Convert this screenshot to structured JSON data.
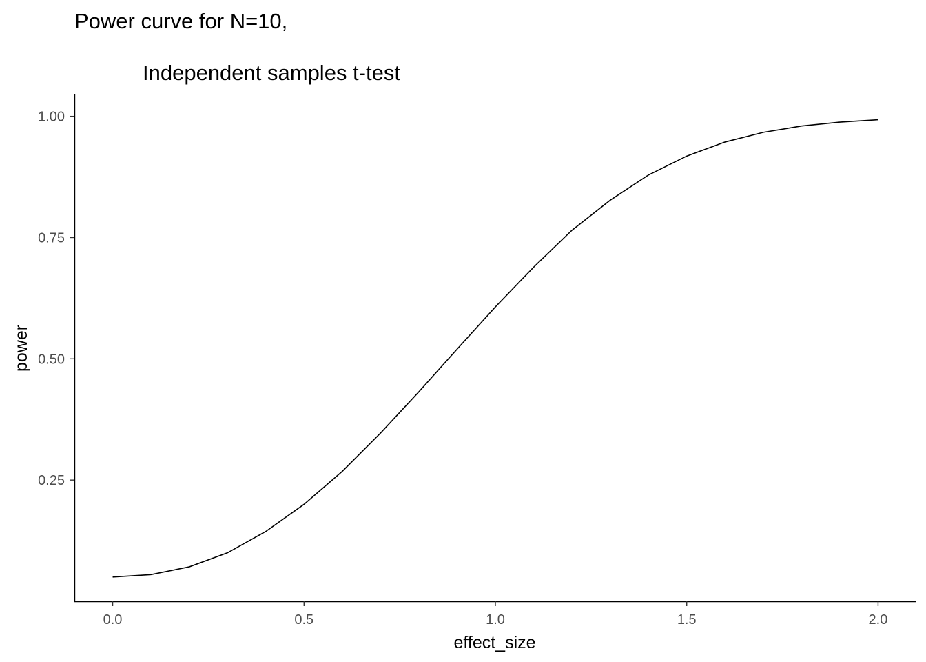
{
  "chart_data": {
    "type": "line",
    "title": "Power curve for N=10,",
    "subtitle": "Independent samples t-test",
    "xlabel": "effect_size",
    "ylabel": "power",
    "xlim": [
      -0.1,
      2.1
    ],
    "ylim": [
      0.0,
      1.045
    ],
    "xticks": [
      0.0,
      0.5,
      1.0,
      1.5,
      2.0
    ],
    "xtick_labels": [
      "0.0",
      "0.5",
      "1.0",
      "1.5",
      "2.0"
    ],
    "yticks": [
      0.25,
      0.5,
      0.75,
      1.0
    ],
    "ytick_labels": [
      "0.25",
      "0.50",
      "0.75",
      "1.00"
    ],
    "grid": false,
    "line_color": "#000000",
    "series": [
      {
        "x": [
          0.0,
          0.1,
          0.2,
          0.3,
          0.4,
          0.5,
          0.6,
          0.7,
          0.8,
          0.9,
          1.0,
          1.1,
          1.2,
          1.3,
          1.4,
          1.5,
          1.6,
          1.7,
          1.8,
          1.9,
          2.0
        ],
        "values": [
          0.05,
          0.055,
          0.071,
          0.1,
          0.144,
          0.2,
          0.268,
          0.347,
          0.432,
          0.52,
          0.607,
          0.689,
          0.765,
          0.827,
          0.879,
          0.918,
          0.947,
          0.967,
          0.98,
          0.988,
          0.993
        ]
      }
    ]
  }
}
